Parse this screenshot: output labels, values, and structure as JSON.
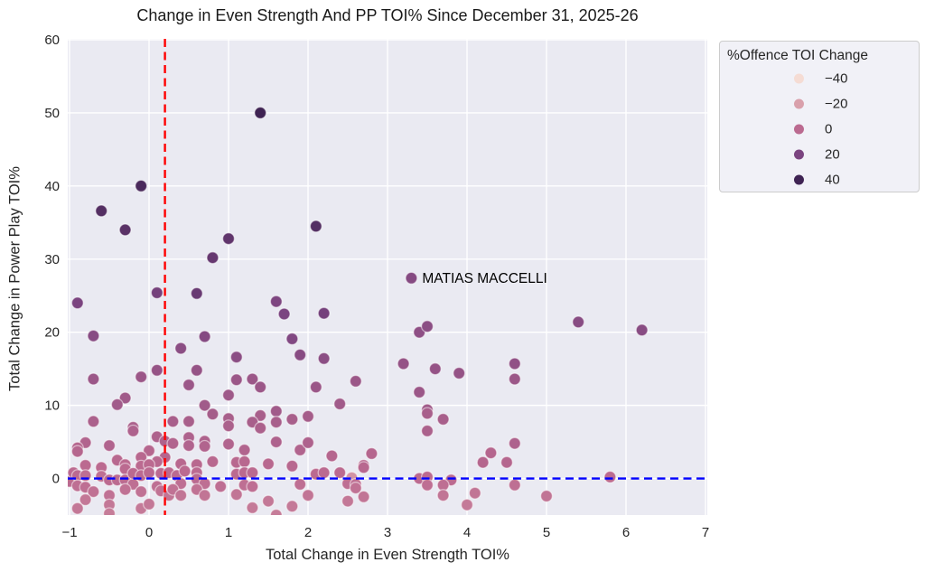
{
  "colors": {
    "plot_bg": "#eaeaf2",
    "grid": "#ffffff",
    "text": "#262626",
    "title_text": "#1a1a1a",
    "annotation_text": "#000000",
    "vline": "#ff0000",
    "hline": "#0000ff",
    "legend_bg": "#f1f1f7",
    "legend_border": "#cccccc",
    "palette_stops": [
      [
        -40,
        "#f5dcd4"
      ],
      [
        -20,
        "#d9a0ab"
      ],
      [
        0,
        "#bb6a90"
      ],
      [
        20,
        "#7b4480"
      ],
      [
        40,
        "#3f2353"
      ]
    ]
  },
  "chart_data": {
    "type": "scatter",
    "title": "Change in Even Strength And PP TOI% Since December 31, 2025-26",
    "xlabel": "Total Change in Even Strength TOI%",
    "ylabel": "Total Change in Power Play TOI%",
    "xlim": [
      -1,
      7
    ],
    "ylim": [
      -5,
      60
    ],
    "x_ticks": [
      -1,
      0,
      1,
      2,
      3,
      4,
      5,
      6,
      7
    ],
    "y_ticks": [
      0,
      10,
      20,
      30,
      40,
      50,
      60
    ],
    "grid": true,
    "legend_title": "%Offence TOI Change",
    "legend_entries": [
      {
        "label": "−40",
        "value": -40
      },
      {
        "label": "−20",
        "value": -20
      },
      {
        "label": "0",
        "value": 0
      },
      {
        "label": "20",
        "value": 20
      },
      {
        "label": "40",
        "value": 40
      }
    ],
    "legend_position": "upper right outside",
    "reference_lines": {
      "vline_x": 0.2,
      "vline_style": "dashed",
      "hline_y": 0,
      "hline_style": "dashed"
    },
    "annotation": {
      "text": "MATIAS MACCELLI",
      "x": 3.3,
      "y": 27.4
    },
    "hue_field": "%Offence TOI Change",
    "series": [
      {
        "name": "players",
        "points": [
          [
            1.4,
            50,
            45
          ],
          [
            -0.1,
            40,
            36
          ],
          [
            -0.6,
            36.6,
            33
          ],
          [
            -0.3,
            34,
            31
          ],
          [
            2.1,
            34.5,
            33
          ],
          [
            1.0,
            32.8,
            29
          ],
          [
            0.8,
            30.2,
            27
          ],
          [
            3.3,
            27.4,
            17
          ],
          [
            0.1,
            25.4,
            22
          ],
          [
            0.6,
            25.3,
            26
          ],
          [
            -0.9,
            24,
            20
          ],
          [
            1.6,
            24.2,
            19
          ],
          [
            1.7,
            22.5,
            20
          ],
          [
            2.2,
            22.6,
            22
          ],
          [
            -0.7,
            19.5,
            16
          ],
          [
            0.7,
            19.4,
            17
          ],
          [
            1.8,
            19.1,
            18
          ],
          [
            0.4,
            17.8,
            15
          ],
          [
            1.1,
            16.6,
            15
          ],
          [
            1.9,
            16.9,
            16
          ],
          [
            2.2,
            16.4,
            15
          ],
          [
            3.4,
            20,
            14
          ],
          [
            3.5,
            20.8,
            15
          ],
          [
            5.4,
            21.4,
            16
          ],
          [
            6.2,
            20.3,
            16
          ],
          [
            3.2,
            15.7,
            12
          ],
          [
            3.6,
            15,
            12
          ],
          [
            3.9,
            14.4,
            12
          ],
          [
            4.6,
            15.7,
            13
          ],
          [
            4.6,
            13.6,
            10
          ],
          [
            3.4,
            11.8,
            10
          ],
          [
            -0.7,
            13.6,
            10
          ],
          [
            -0.1,
            13.9,
            10
          ],
          [
            0.1,
            14.8,
            12
          ],
          [
            0.6,
            14.8,
            12
          ],
          [
            0.5,
            12.8,
            10
          ],
          [
            -0.3,
            11,
            8
          ],
          [
            -0.4,
            10.1,
            8
          ],
          [
            1.0,
            11.4,
            9
          ],
          [
            1.1,
            13.5,
            10
          ],
          [
            1.3,
            13.6,
            10
          ],
          [
            1.4,
            12.5,
            10
          ],
          [
            2.1,
            12.5,
            10
          ],
          [
            2.6,
            13.3,
            10
          ],
          [
            2.4,
            10.2,
            8
          ],
          [
            0.7,
            10,
            8
          ],
          [
            0.8,
            8.8,
            7
          ],
          [
            1.6,
            9.2,
            8
          ],
          [
            1.4,
            8.6,
            6
          ],
          [
            1.6,
            7.7,
            6
          ],
          [
            1.3,
            7.7,
            6
          ],
          [
            1.8,
            8.1,
            6
          ],
          [
            2.0,
            8.5,
            7
          ],
          [
            1.4,
            6.9,
            5
          ],
          [
            3.5,
            9.4,
            8
          ],
          [
            3.5,
            8.9,
            6
          ],
          [
            3.7,
            8.1,
            6
          ],
          [
            3.5,
            6.5,
            5
          ],
          [
            -0.7,
            7.8,
            5
          ],
          [
            0.3,
            7.8,
            6
          ],
          [
            0.5,
            7.8,
            6
          ],
          [
            1.0,
            8.2,
            6
          ],
          [
            1.0,
            7.2,
            5
          ],
          [
            -0.2,
            7,
            5
          ],
          [
            -0.2,
            6.5,
            4
          ],
          [
            0.1,
            5.7,
            4
          ],
          [
            0.2,
            5.1,
            4
          ],
          [
            0.3,
            4.8,
            3
          ],
          [
            0.5,
            5.6,
            4
          ],
          [
            0.5,
            4.5,
            3
          ],
          [
            0.7,
            5.1,
            4
          ],
          [
            0.7,
            4.4,
            3
          ],
          [
            1.0,
            4.7,
            3
          ],
          [
            -0.8,
            4.9,
            3
          ],
          [
            -0.9,
            4.2,
            2
          ],
          [
            -0.9,
            3.7,
            2
          ],
          [
            -0.5,
            4.5,
            3
          ],
          [
            0.0,
            3.8,
            2
          ],
          [
            0.2,
            2.9,
            2
          ],
          [
            -0.4,
            2.5,
            1
          ],
          [
            1.2,
            3.9,
            3
          ],
          [
            1.6,
            5,
            4
          ],
          [
            1.9,
            3.9,
            3
          ],
          [
            2.0,
            4.9,
            4
          ],
          [
            2.3,
            3.1,
            2
          ],
          [
            2.8,
            3.4,
            2
          ],
          [
            4.6,
            4.8,
            4
          ],
          [
            4.3,
            3.5,
            2
          ],
          [
            4.2,
            2.2,
            2
          ],
          [
            4.5,
            2.2,
            2
          ],
          [
            1.1,
            2.2,
            1
          ],
          [
            1.2,
            2.3,
            1
          ],
          [
            1.5,
            2,
            1
          ],
          [
            1.8,
            1.7,
            1
          ],
          [
            2.7,
            1.8,
            1
          ],
          [
            2.7,
            1.5,
            1
          ],
          [
            0.1,
            2.3,
            1
          ],
          [
            0.4,
            2,
            1
          ],
          [
            0.6,
            1.9,
            1
          ],
          [
            0.8,
            2.3,
            1
          ],
          [
            -1.0,
            -0.4,
            0
          ],
          [
            -0.95,
            0.8,
            0
          ],
          [
            -0.9,
            0.4,
            0
          ],
          [
            -0.8,
            1.8,
            0
          ],
          [
            -0.8,
            0.4,
            -2
          ],
          [
            -0.6,
            1.5,
            0
          ],
          [
            -0.6,
            0.3,
            -2
          ],
          [
            -0.9,
            -1,
            -2
          ],
          [
            -0.8,
            -1.2,
            -2
          ],
          [
            -0.7,
            -1.8,
            -3
          ],
          [
            -0.8,
            -2.9,
            -5
          ],
          [
            -0.9,
            -4.1,
            -5
          ],
          [
            -0.5,
            -0.2,
            0
          ],
          [
            -0.5,
            -2.3,
            -3
          ],
          [
            -0.5,
            -3.6,
            -5
          ],
          [
            -0.5,
            -4.8,
            -7
          ],
          [
            -0.3,
            1.9,
            0
          ],
          [
            -0.3,
            1.3,
            0
          ],
          [
            -0.4,
            -0.2,
            0
          ],
          [
            -0.3,
            -0.2,
            0
          ],
          [
            -0.2,
            -0.8,
            -2
          ],
          [
            -0.3,
            -1.5,
            -3
          ],
          [
            -0.1,
            2.9,
            1
          ],
          [
            -0.1,
            1.7,
            0
          ],
          [
            -0.2,
            0.7,
            0
          ],
          [
            -0.1,
            0.4,
            0
          ],
          [
            -0.1,
            -1.8,
            -3
          ],
          [
            -0.1,
            -4.1,
            -6
          ],
          [
            0.0,
            1.9,
            0
          ],
          [
            0.0,
            0.8,
            0
          ],
          [
            0.15,
            0.7,
            0
          ],
          [
            0.25,
            0.8,
            0
          ],
          [
            0.35,
            0.4,
            0
          ],
          [
            0.45,
            1,
            0
          ],
          [
            0.1,
            -1.1,
            -2
          ],
          [
            0.15,
            -1.7,
            -3
          ],
          [
            0.25,
            -2.3,
            -4
          ],
          [
            0.0,
            -3.5,
            -5
          ],
          [
            0.4,
            -0.7,
            -2
          ],
          [
            0.3,
            -1.5,
            -3
          ],
          [
            0.4,
            -2.3,
            -4
          ],
          [
            0.6,
            0.8,
            0
          ],
          [
            0.6,
            -0.1,
            0
          ],
          [
            0.7,
            -0.7,
            -2
          ],
          [
            0.6,
            -1.5,
            -3
          ],
          [
            0.7,
            -2.3,
            -4
          ],
          [
            0.9,
            -1.1,
            -2
          ],
          [
            1.1,
            0.6,
            0
          ],
          [
            1.2,
            0.8,
            0
          ],
          [
            1.3,
            0.8,
            0
          ],
          [
            1.2,
            -0.9,
            -2
          ],
          [
            1.3,
            -1.1,
            -2
          ],
          [
            1.1,
            -2.2,
            -4
          ],
          [
            1.3,
            -4,
            -6
          ],
          [
            1.5,
            -3.1,
            -5
          ],
          [
            1.6,
            -5,
            -7
          ],
          [
            1.8,
            -3.8,
            -6
          ],
          [
            1.9,
            -0.8,
            -2
          ],
          [
            2.0,
            -2.3,
            -4
          ],
          [
            2.1,
            0.6,
            0
          ],
          [
            2.2,
            0.8,
            0
          ],
          [
            2.4,
            0.8,
            0
          ],
          [
            2.55,
            0.1,
            -15
          ],
          [
            2.5,
            -0.7,
            -2
          ],
          [
            2.6,
            -0.8,
            -2
          ],
          [
            2.6,
            -1.3,
            -3
          ],
          [
            2.5,
            -3.1,
            -5
          ],
          [
            2.7,
            -2.5,
            -4
          ],
          [
            3.4,
            0,
            0
          ],
          [
            3.5,
            0.2,
            0
          ],
          [
            3.5,
            -0.9,
            -2
          ],
          [
            3.8,
            -0.2,
            0
          ],
          [
            3.7,
            -0.9,
            -2
          ],
          [
            3.7,
            -2.3,
            -4
          ],
          [
            4.1,
            -2,
            -4
          ],
          [
            4.0,
            -3.6,
            -6
          ],
          [
            4.6,
            -0.9,
            -2
          ],
          [
            5.0,
            -2.4,
            -4
          ],
          [
            5.8,
            0.2,
            0
          ]
        ]
      }
    ]
  }
}
